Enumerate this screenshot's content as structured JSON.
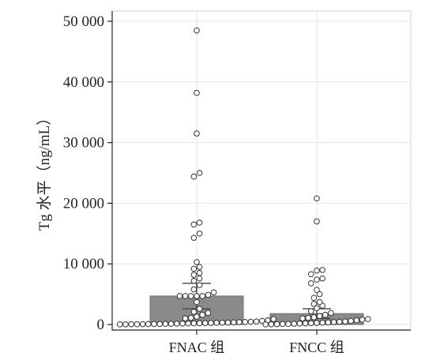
{
  "chart_data": {
    "type": "bar",
    "title": "",
    "ylabel": "Tg 水平（ng/mL）",
    "xlabel": "",
    "ylim": [
      0,
      50000
    ],
    "yticks": [
      0,
      10000,
      20000,
      30000,
      40000,
      50000
    ],
    "ytick_labels": [
      "0",
      "10 000",
      "20 000",
      "30 000",
      "40 000",
      "50 000"
    ],
    "grid": true,
    "categories": [
      "FNAC 组",
      "FNCC 组"
    ],
    "bar_values": [
      4700,
      1800
    ],
    "error_bars": [
      {
        "low": 2600,
        "high": 6800
      },
      {
        "low": 1000,
        "high": 2600
      }
    ],
    "bar_color": "#8a8a8a",
    "point_color": "#ffffff",
    "point_stroke": "#333333",
    "points": [
      [
        48500,
        38200,
        31500,
        25000,
        24400,
        16800,
        16500,
        15000,
        14300,
        10300,
        9500,
        9200,
        8500,
        8200,
        7600,
        7200,
        6500,
        5800,
        5300,
        4900,
        4700,
        4700,
        4700,
        4700,
        4700,
        3700,
        2600,
        2100,
        1900,
        1600,
        1300,
        1100,
        1000,
        900,
        700,
        600,
        500,
        450,
        420,
        380,
        350,
        320,
        300,
        280,
        260,
        240,
        220,
        200,
        180,
        160,
        140,
        120,
        100,
        90,
        80,
        70,
        60,
        50,
        40,
        30,
        20
      ],
      [
        20800,
        17000,
        9000,
        8900,
        8300,
        7600,
        7400,
        6800,
        5700,
        5000,
        4400,
        3700,
        3400,
        3100,
        2700,
        2200,
        1900,
        1600,
        1400,
        1200,
        1100,
        1000,
        900,
        800,
        700,
        600,
        500,
        450,
        400,
        350,
        300,
        260,
        220,
        190,
        160,
        130,
        100,
        80,
        60,
        40,
        20
      ]
    ]
  }
}
